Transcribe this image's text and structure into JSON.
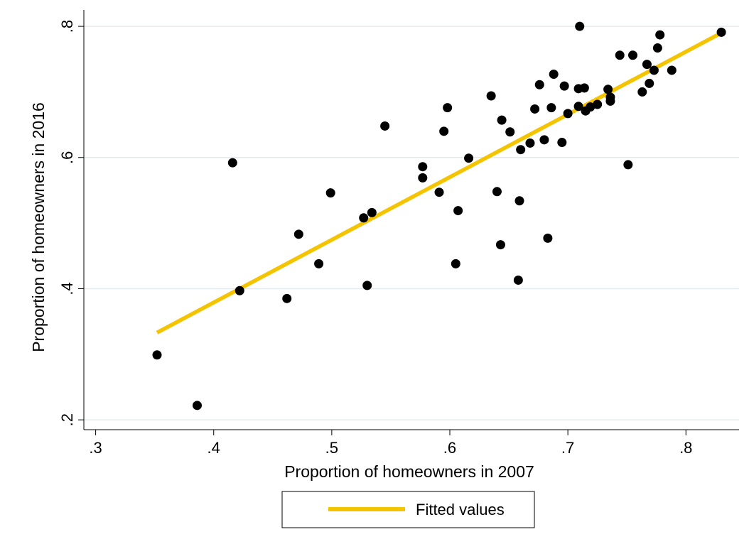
{
  "chart_data": {
    "type": "scatter",
    "xlabel": "Proportion of homeowners in 2007",
    "ylabel": "Proportion of homeowners in 2016",
    "xlim": [
      0.29,
      0.845
    ],
    "ylim": [
      0.185,
      0.825
    ],
    "x_ticks": [
      0.3,
      0.4,
      0.5,
      0.6,
      0.7,
      0.8
    ],
    "x_tick_labels": [
      ".3",
      ".4",
      ".5",
      ".6",
      ".7",
      ".8"
    ],
    "y_ticks": [
      0.2,
      0.4,
      0.6,
      0.8
    ],
    "y_tick_labels": [
      ".2",
      ".4",
      ".6",
      ".8"
    ],
    "grid": "horizontal",
    "points_color": "#000000",
    "fit_color": "#f5c400",
    "series": [
      {
        "kind": "points",
        "points": [
          [
            0.352,
            0.299
          ],
          [
            0.386,
            0.222
          ],
          [
            0.416,
            0.592
          ],
          [
            0.422,
            0.397
          ],
          [
            0.462,
            0.385
          ],
          [
            0.472,
            0.483
          ],
          [
            0.489,
            0.438
          ],
          [
            0.499,
            0.546
          ],
          [
            0.527,
            0.508
          ],
          [
            0.53,
            0.405
          ],
          [
            0.534,
            0.516
          ],
          [
            0.545,
            0.648
          ],
          [
            0.577,
            0.586
          ],
          [
            0.577,
            0.569
          ],
          [
            0.591,
            0.547
          ],
          [
            0.595,
            0.64
          ],
          [
            0.598,
            0.676
          ],
          [
            0.605,
            0.438
          ],
          [
            0.607,
            0.519
          ],
          [
            0.616,
            0.599
          ],
          [
            0.635,
            0.694
          ],
          [
            0.64,
            0.548
          ],
          [
            0.643,
            0.467
          ],
          [
            0.644,
            0.657
          ],
          [
            0.651,
            0.639
          ],
          [
            0.658,
            0.413
          ],
          [
            0.659,
            0.534
          ],
          [
            0.66,
            0.612
          ],
          [
            0.668,
            0.622
          ],
          [
            0.672,
            0.674
          ],
          [
            0.676,
            0.711
          ],
          [
            0.68,
            0.627
          ],
          [
            0.683,
            0.477
          ],
          [
            0.686,
            0.676
          ],
          [
            0.688,
            0.727
          ],
          [
            0.695,
            0.623
          ],
          [
            0.697,
            0.709
          ],
          [
            0.7,
            0.667
          ],
          [
            0.709,
            0.678
          ],
          [
            0.709,
            0.705
          ],
          [
            0.71,
            0.8
          ],
          [
            0.714,
            0.706
          ],
          [
            0.715,
            0.671
          ],
          [
            0.719,
            0.677
          ],
          [
            0.725,
            0.681
          ],
          [
            0.734,
            0.704
          ],
          [
            0.736,
            0.686
          ],
          [
            0.736,
            0.692
          ],
          [
            0.744,
            0.756
          ],
          [
            0.751,
            0.589
          ],
          [
            0.755,
            0.756
          ],
          [
            0.763,
            0.7
          ],
          [
            0.767,
            0.742
          ],
          [
            0.769,
            0.713
          ],
          [
            0.773,
            0.733
          ],
          [
            0.776,
            0.767
          ],
          [
            0.778,
            0.787
          ],
          [
            0.788,
            0.733
          ],
          [
            0.83,
            0.791
          ]
        ]
      },
      {
        "kind": "line",
        "name": "Fitted values",
        "x": [
          0.352,
          0.83
        ],
        "y": [
          0.333,
          0.79
        ]
      }
    ],
    "legend": {
      "position": "bottom-center",
      "label": "Fitted values"
    }
  }
}
